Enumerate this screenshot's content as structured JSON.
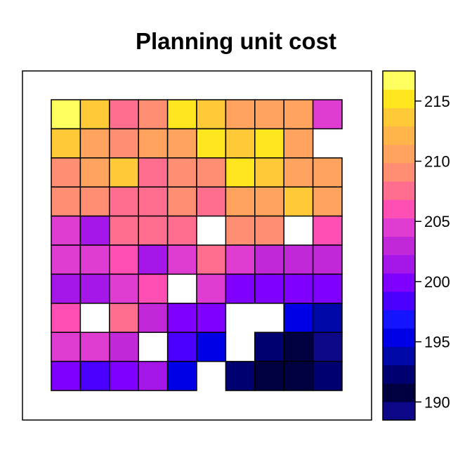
{
  "chart_data": {
    "type": "heatmap",
    "title": "Planning unit cost",
    "rows": 10,
    "cols": 10,
    "values": [
      [
        217,
        213,
        207,
        209,
        215,
        213,
        211,
        211,
        211,
        204
      ],
      [
        213,
        211,
        209,
        211,
        211,
        215,
        213,
        215,
        211,
        null
      ],
      [
        209,
        211,
        213,
        207,
        209,
        209,
        215,
        213,
        211,
        211
      ],
      [
        209,
        209,
        207,
        207,
        209,
        207,
        211,
        211,
        213,
        211
      ],
      [
        204,
        202,
        207,
        207,
        207,
        null,
        209,
        209,
        null,
        206
      ],
      [
        204,
        204,
        206,
        202,
        204,
        207,
        204,
        203,
        203,
        203
      ],
      [
        202,
        202,
        204,
        206,
        null,
        204,
        200,
        200,
        200,
        200
      ],
      [
        206,
        null,
        208,
        203,
        200,
        200,
        null,
        null,
        196,
        194
      ],
      [
        204,
        204,
        203,
        null,
        198,
        196,
        null,
        192,
        191,
        189
      ],
      [
        200,
        199,
        200,
        201,
        196,
        null,
        193,
        191,
        191,
        192
      ]
    ],
    "colorbar": {
      "min": 188.5,
      "max": 217.5,
      "ticks": [
        190,
        195,
        200,
        205,
        210,
        215
      ],
      "colors": [
        "#0d0887",
        "#000040",
        "#000070",
        "#0008a8",
        "#0000e6",
        "#1414ff",
        "#4b00ff",
        "#7f00ff",
        "#a516e8",
        "#c028d8",
        "#df3dd1",
        "#ff4fb4",
        "#ff6e8e",
        "#ff8e73",
        "#ffa35e",
        "#ffb54a",
        "#ffc938",
        "#ffe61e",
        "#ffff60"
      ]
    }
  }
}
